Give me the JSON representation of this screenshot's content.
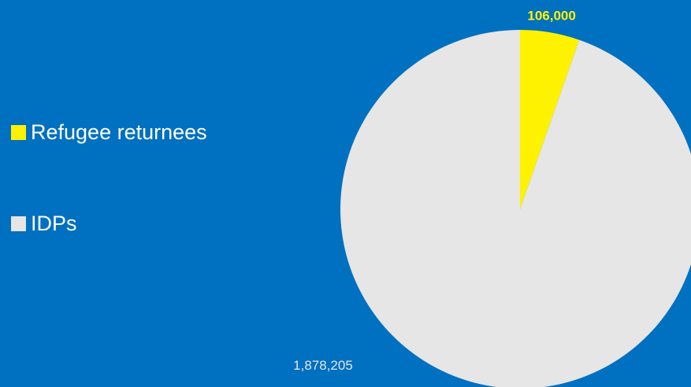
{
  "colors": {
    "background": "#0070C0",
    "refugee_returnees": "#FFF200",
    "idps": "#E6E6E6",
    "label_refugee": "#FFF200",
    "label_idp": "#E6E6E6"
  },
  "chart_data": {
    "type": "pie",
    "title": "",
    "start_angle_deg": 0,
    "direction": "clockwise",
    "legend": "left",
    "categories": [
      "Refugee returnees",
      "IDPs"
    ],
    "values": [
      106000,
      1878205
    ],
    "data_labels": [
      "106,000",
      "1,878,205"
    ]
  }
}
